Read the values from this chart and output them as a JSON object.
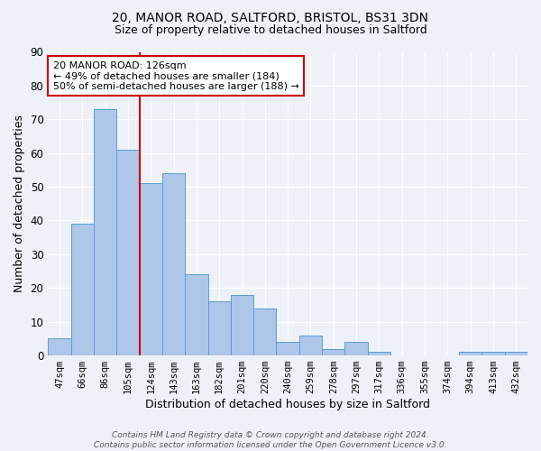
{
  "title1": "20, MANOR ROAD, SALTFORD, BRISTOL, BS31 3DN",
  "title2": "Size of property relative to detached houses in Saltford",
  "xlabel": "Distribution of detached houses by size in Saltford",
  "ylabel": "Number of detached properties",
  "categories": [
    "47sqm",
    "66sqm",
    "86sqm",
    "105sqm",
    "124sqm",
    "143sqm",
    "163sqm",
    "182sqm",
    "201sqm",
    "220sqm",
    "240sqm",
    "259sqm",
    "278sqm",
    "297sqm",
    "317sqm",
    "336sqm",
    "355sqm",
    "374sqm",
    "394sqm",
    "413sqm",
    "432sqm"
  ],
  "values": [
    5,
    39,
    73,
    61,
    51,
    54,
    24,
    16,
    18,
    14,
    4,
    6,
    2,
    4,
    1,
    0,
    0,
    0,
    1,
    1,
    1
  ],
  "bar_color": "#aec6e8",
  "bar_edge_color": "#5a9fd4",
  "vline_x": 3.5,
  "vline_color": "#cc0000",
  "annotation_text": "20 MANOR ROAD: 126sqm\n← 49% of detached houses are smaller (184)\n50% of semi-detached houses are larger (188) →",
  "annotation_box_color": "#ffffff",
  "annotation_box_edge_color": "#cc0000",
  "ylim": [
    0,
    90
  ],
  "yticks": [
    0,
    10,
    20,
    30,
    40,
    50,
    60,
    70,
    80,
    90
  ],
  "footer": "Contains HM Land Registry data © Crown copyright and database right 2024.\nContains public sector information licensed under the Open Government Licence v3.0.",
  "bg_color": "#eef2f8",
  "grid_color": "#ffffff",
  "figsize": [
    6.0,
    5.0
  ],
  "dpi": 100
}
